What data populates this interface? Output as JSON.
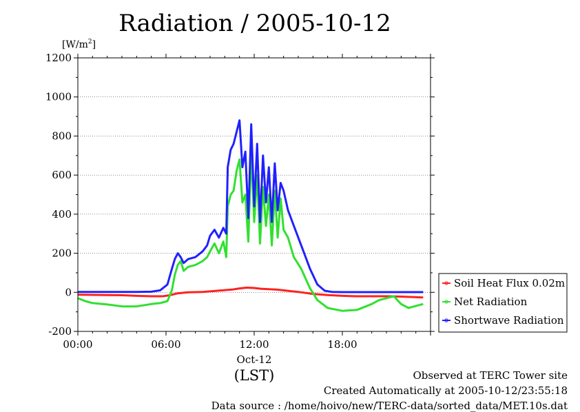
{
  "chart_data": {
    "type": "line",
    "title": "Radiation / 2005-10-12",
    "unit_label": "[W/m",
    "unit_sup": "2",
    "unit_close": "]",
    "ylim": [
      -200,
      1200
    ],
    "yticks": [
      -200,
      0,
      200,
      400,
      600,
      800,
      1000,
      1200
    ],
    "xlim": [
      0,
      24
    ],
    "xticks": [
      {
        "value": 0,
        "label": "00:00"
      },
      {
        "value": 6,
        "label": "06:00"
      },
      {
        "value": 12,
        "label": "12:00"
      },
      {
        "value": 18,
        "label": "18:00"
      }
    ],
    "date_label": "Oct-12",
    "xlabel": "(LST)",
    "grid": "horizontal-dashed",
    "legend_placement": "right",
    "series": [
      {
        "name": "Soil Heat Flux 0.02m",
        "color": "#ff2020",
        "x": [
          0,
          1,
          2,
          3,
          4,
          5,
          5.8,
          6.3,
          6.8,
          7.5,
          8.5,
          9.5,
          10.5,
          11,
          11.5,
          12,
          12.5,
          13,
          13.5,
          14,
          14.5,
          15,
          16,
          17,
          18,
          19,
          20,
          21,
          22,
          23.5
        ],
        "values": [
          -12,
          -13,
          -14,
          -15,
          -18,
          -20,
          -20,
          -14,
          -5,
          0,
          2,
          8,
          14,
          20,
          24,
          22,
          18,
          16,
          14,
          10,
          6,
          2,
          -8,
          -14,
          -18,
          -20,
          -20,
          -20,
          -22,
          -26
        ]
      },
      {
        "name": "Net Radiation",
        "color": "#30e030",
        "x": [
          0,
          0.5,
          1,
          2,
          3,
          4,
          5,
          5.6,
          6.1,
          6.4,
          6.6,
          6.8,
          7,
          7.2,
          7.5,
          8,
          8.5,
          8.8,
          9,
          9.3,
          9.6,
          9.9,
          10.1,
          10.2,
          10.4,
          10.6,
          10.8,
          11,
          11.2,
          11.4,
          11.6,
          11.8,
          12,
          12.2,
          12.4,
          12.6,
          12.8,
          13,
          13.2,
          13.4,
          13.6,
          13.8,
          14,
          14.3,
          14.7,
          15.2,
          15.8,
          16.3,
          17,
          18,
          19,
          20,
          20.5,
          21,
          21.5,
          22,
          22.5,
          23,
          23.5
        ],
        "values": [
          -30,
          -45,
          -55,
          -62,
          -72,
          -72,
          -60,
          -55,
          -45,
          10,
          90,
          140,
          160,
          110,
          130,
          140,
          160,
          180,
          210,
          250,
          200,
          260,
          180,
          440,
          500,
          520,
          620,
          680,
          460,
          500,
          260,
          720,
          360,
          600,
          250,
          540,
          340,
          500,
          240,
          520,
          280,
          480,
          320,
          280,
          180,
          120,
          20,
          -40,
          -80,
          -95,
          -90,
          -60,
          -40,
          -30,
          -20,
          -60,
          -80,
          -70,
          -60
        ]
      },
      {
        "name": "Shortwave Radiation",
        "color": "#2020ff",
        "x": [
          0,
          1,
          2,
          3,
          4,
          5,
          5.6,
          6.1,
          6.4,
          6.6,
          6.8,
          7,
          7.2,
          7.5,
          8,
          8.5,
          8.8,
          9,
          9.3,
          9.6,
          9.9,
          10.1,
          10.2,
          10.4,
          10.6,
          10.8,
          11,
          11.2,
          11.4,
          11.6,
          11.8,
          12,
          12.2,
          12.4,
          12.6,
          12.8,
          13,
          13.2,
          13.4,
          13.6,
          13.8,
          14,
          14.3,
          14.7,
          15.2,
          15.8,
          16.3,
          16.8,
          17.3,
          18,
          19,
          20,
          21,
          22,
          23,
          23.5
        ],
        "values": [
          2,
          2,
          2,
          2,
          2,
          3,
          10,
          40,
          120,
          170,
          200,
          180,
          150,
          170,
          180,
          210,
          240,
          290,
          320,
          280,
          330,
          300,
          640,
          730,
          760,
          820,
          880,
          640,
          720,
          380,
          860,
          440,
          760,
          360,
          700,
          460,
          640,
          360,
          660,
          420,
          560,
          520,
          420,
          340,
          240,
          120,
          40,
          8,
          2,
          1,
          1,
          1,
          1,
          1,
          1,
          1
        ]
      }
    ]
  },
  "footer": {
    "line1": "Observed at TERC Tower site",
    "line2": "Created Automatically at 2005-10-12/23:55:18",
    "line3": "Data source : /home/hoivo/new/TERC-data/sorted_data/MET.10s.dat"
  }
}
